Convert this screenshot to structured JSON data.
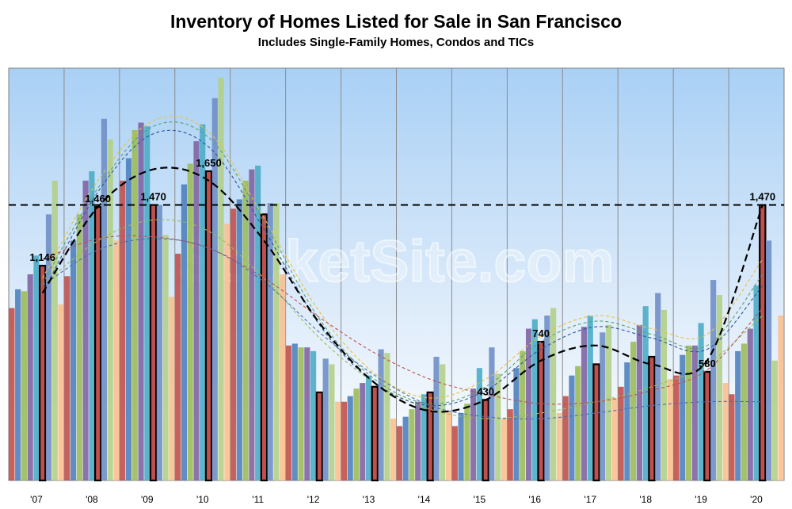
{
  "chart_data": {
    "type": "bar",
    "title": "Inventory of Homes Listed for Sale in San Francisco",
    "subtitle": "Includes Single-Family Homes, Condos and TICs",
    "xlabel": "",
    "ylabel": "",
    "ylim": [
      0,
      2200
    ],
    "grid": true,
    "legend": "none",
    "watermark": "SocketSite.com",
    "categories": [
      "'07",
      "'08",
      "'09",
      "'10",
      "'11",
      "'12",
      "'13",
      "'14",
      "'15",
      "'16",
      "'17",
      "'18",
      "'19",
      "'20"
    ],
    "bars_per_category": 9,
    "highlight_index": 5,
    "bar_colors": [
      "#c0504d",
      "#4f81bd",
      "#9bbb59",
      "#8064a2",
      "#4bacc6",
      "#f79646",
      "#6f8fc7",
      "#b2cf87",
      "#fac08f"
    ],
    "highlight_color": "#c0504d",
    "values": [
      [
        920,
        1020,
        1010,
        1100,
        1200,
        1146,
        1420,
        1600,
        940
      ],
      [
        1090,
        1280,
        1420,
        1600,
        1650,
        1460,
        1930,
        1820,
        1280
      ],
      [
        1600,
        1720,
        1870,
        1910,
        1890,
        1470,
        1470,
        1310,
        980
      ],
      [
        1210,
        1580,
        1690,
        1810,
        1900,
        1650,
        2040,
        2150,
        1370
      ],
      [
        1450,
        1500,
        1600,
        1660,
        1680,
        1420,
        1480,
        1480,
        1100
      ],
      [
        720,
        730,
        710,
        710,
        690,
        470,
        650,
        620,
        420
      ],
      [
        420,
        450,
        490,
        520,
        560,
        500,
        700,
        680,
        330
      ],
      [
        290,
        340,
        380,
        420,
        460,
        470,
        660,
        620,
        370
      ],
      [
        290,
        360,
        410,
        490,
        600,
        430,
        710,
        570,
        330
      ],
      [
        380,
        600,
        690,
        810,
        860,
        740,
        880,
        920,
        360
      ],
      [
        450,
        560,
        610,
        820,
        880,
        620,
        790,
        830,
        440
      ],
      [
        500,
        630,
        740,
        830,
        930,
        660,
        1000,
        910,
        540
      ],
      [
        560,
        670,
        720,
        720,
        840,
        580,
        1070,
        990,
        520
      ],
      [
        460,
        690,
        730,
        810,
        1040,
        1470,
        1280,
        640,
        880
      ]
    ],
    "data_labels": [
      {
        "category": "'07",
        "text": "1,146"
      },
      {
        "category": "'08",
        "text": "1,460"
      },
      {
        "category": "'09",
        "text": "1,470"
      },
      {
        "category": "'10",
        "text": "1,650"
      },
      {
        "category": "'15",
        "text": "430"
      },
      {
        "category": "'16",
        "text": "740"
      },
      {
        "category": "'19",
        "text": "580"
      },
      {
        "category": "'20",
        "text": "1,470"
      }
    ],
    "reference_line": {
      "value": 1470,
      "style": "dashed",
      "color": "#000000"
    },
    "trend_lines": [
      {
        "name": "main-trend",
        "color": "#000000",
        "width": 2.2,
        "dash": "9,5",
        "points": [
          [
            0,
            1000
          ],
          [
            1,
            1460
          ],
          [
            2,
            1660
          ],
          [
            3,
            1600
          ],
          [
            4,
            1280
          ],
          [
            5,
            840
          ],
          [
            6,
            520
          ],
          [
            7,
            370
          ],
          [
            8,
            430
          ],
          [
            9,
            640
          ],
          [
            10,
            720
          ],
          [
            11,
            620
          ],
          [
            12,
            640
          ],
          [
            13,
            1470
          ]
        ]
      },
      {
        "name": "trend-yellow",
        "color": "#e8c040",
        "width": 1.1,
        "dash": "4,3",
        "points": [
          [
            0,
            1080
          ],
          [
            1,
            1600
          ],
          [
            2,
            1920
          ],
          [
            3,
            1860
          ],
          [
            4,
            1400
          ],
          [
            5,
            900
          ],
          [
            6,
            570
          ],
          [
            7,
            440
          ],
          [
            8,
            540
          ],
          [
            9,
            770
          ],
          [
            10,
            880
          ],
          [
            11,
            810
          ],
          [
            12,
            780
          ],
          [
            13,
            1180
          ]
        ]
      },
      {
        "name": "trend-blue-green",
        "color": "#5aa070",
        "width": 1.1,
        "dash": "4,3",
        "points": [
          [
            0,
            1050
          ],
          [
            1,
            1560
          ],
          [
            2,
            1890
          ],
          [
            3,
            1830
          ],
          [
            4,
            1380
          ],
          [
            5,
            860
          ],
          [
            6,
            540
          ],
          [
            7,
            410
          ],
          [
            8,
            500
          ],
          [
            9,
            740
          ],
          [
            10,
            850
          ],
          [
            11,
            780
          ],
          [
            12,
            720
          ],
          [
            13,
            1100
          ]
        ]
      },
      {
        "name": "trend-green",
        "color": "#9bbb59",
        "width": 1.1,
        "dash": "4,3",
        "points": [
          [
            0,
            1040
          ],
          [
            1,
            1280
          ],
          [
            2,
            1390
          ],
          [
            3,
            1330
          ],
          [
            4,
            1080
          ],
          [
            5,
            760
          ],
          [
            6,
            520
          ],
          [
            7,
            380
          ],
          [
            8,
            330
          ],
          [
            9,
            360
          ],
          [
            10,
            420
          ],
          [
            11,
            500
          ],
          [
            12,
            620
          ],
          [
            13,
            880
          ]
        ]
      },
      {
        "name": "trend-red",
        "color": "#c0504d",
        "width": 1.1,
        "dash": "4,3",
        "points": [
          [
            0,
            1180
          ],
          [
            1,
            1290
          ],
          [
            2,
            1300
          ],
          [
            3,
            1240
          ],
          [
            4,
            1080
          ],
          [
            5,
            870
          ],
          [
            6,
            680
          ],
          [
            7,
            540
          ],
          [
            8,
            460
          ],
          [
            9,
            410
          ],
          [
            10,
            420
          ],
          [
            11,
            480
          ],
          [
            12,
            590
          ],
          [
            13,
            920
          ]
        ]
      },
      {
        "name": "trend-steel",
        "color": "#4f6fa8",
        "width": 1.1,
        "dash": "4,3",
        "points": [
          [
            0,
            1040
          ],
          [
            1,
            1230
          ],
          [
            2,
            1290
          ],
          [
            3,
            1240
          ],
          [
            4,
            1060
          ],
          [
            5,
            790
          ],
          [
            6,
            560
          ],
          [
            7,
            400
          ],
          [
            8,
            340
          ],
          [
            9,
            330
          ],
          [
            10,
            360
          ],
          [
            11,
            400
          ],
          [
            12,
            420
          ],
          [
            13,
            420
          ]
        ]
      },
      {
        "name": "trend-navy",
        "color": "#2f5597",
        "width": 1.1,
        "dash": "4,3",
        "points": [
          [
            0,
            1000
          ],
          [
            1,
            1540
          ],
          [
            2,
            1850
          ],
          [
            3,
            1780
          ],
          [
            4,
            1340
          ],
          [
            5,
            830
          ],
          [
            6,
            520
          ],
          [
            7,
            400
          ],
          [
            8,
            480
          ],
          [
            9,
            700
          ],
          [
            10,
            820
          ],
          [
            11,
            760
          ],
          [
            12,
            700
          ],
          [
            13,
            1040
          ]
        ]
      }
    ]
  }
}
